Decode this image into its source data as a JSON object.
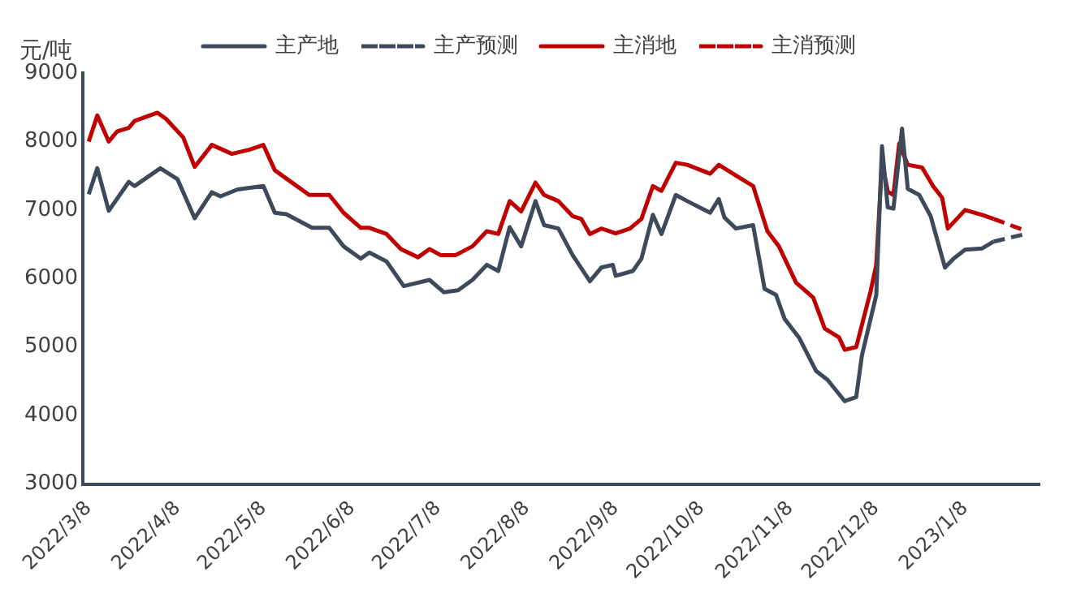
{
  "chart_data": {
    "type": "line",
    "ylabel": "元/吨",
    "legend": "top",
    "marker": "none",
    "grid": false,
    "xlim": [
      "2022-03-06",
      "2023-02-03"
    ],
    "xticks": [
      {
        "value": "2022-03-08",
        "label": "2022/3/8"
      },
      {
        "value": "2022-04-08",
        "label": "2022/4/8"
      },
      {
        "value": "2022-05-08",
        "label": "2022/5/8"
      },
      {
        "value": "2022-06-08",
        "label": "2022/6/8"
      },
      {
        "value": "2022-07-08",
        "label": "2022/7/8"
      },
      {
        "value": "2022-08-08",
        "label": "2022/8/8"
      },
      {
        "value": "2022-09-08",
        "label": "2022/9/8"
      },
      {
        "value": "2022-10-08",
        "label": "2022/10/8"
      },
      {
        "value": "2022-11-08",
        "label": "2022/11/8"
      },
      {
        "value": "2022-12-08",
        "label": "2022/12/8"
      },
      {
        "value": "2023-01-08",
        "label": "2023/1/8"
      }
    ],
    "ylim": [
      3000,
      9000
    ],
    "yticks": [
      3000,
      4000,
      5000,
      6000,
      7000,
      8000,
      9000
    ],
    "series": [
      {
        "name": "主产地",
        "color": "#3d4a5c",
        "line_style": "solid",
        "x": [
          "2022-03-08",
          "2022-03-11",
          "2022-03-15",
          "2022-03-19",
          "2022-03-22",
          "2022-03-24",
          "2022-04-02",
          "2022-04-08",
          "2022-04-14",
          "2022-04-20",
          "2022-04-23",
          "2022-04-29",
          "2022-05-08",
          "2022-05-12",
          "2022-05-16",
          "2022-05-25",
          "2022-05-31",
          "2022-06-05",
          "2022-06-11",
          "2022-06-14",
          "2022-06-20",
          "2022-06-26",
          "2022-06-29",
          "2022-07-05",
          "2022-07-10",
          "2022-07-15",
          "2022-07-20",
          "2022-07-25",
          "2022-07-29",
          "2022-08-02",
          "2022-08-06",
          "2022-08-11",
          "2022-08-14",
          "2022-08-19",
          "2022-08-24",
          "2022-08-30",
          "2022-09-03",
          "2022-09-07",
          "2022-09-08",
          "2022-09-14",
          "2022-09-17",
          "2022-09-21",
          "2022-09-24",
          "2022-09-29",
          "2022-10-03",
          "2022-10-11",
          "2022-10-14",
          "2022-10-16",
          "2022-10-20",
          "2022-10-26",
          "2022-10-30",
          "2022-11-03",
          "2022-11-06",
          "2022-11-11",
          "2022-11-17",
          "2022-11-21",
          "2022-11-27",
          "2022-12-01",
          "2022-12-03",
          "2022-12-08",
          "2022-12-10",
          "2022-12-12",
          "2022-12-14",
          "2022-12-17",
          "2022-12-19",
          "2022-12-23",
          "2022-12-27",
          "2023-01-01",
          "2023-01-04",
          "2023-01-08",
          "2023-01-14",
          "2023-01-18"
        ],
        "values": [
          7230,
          7610,
          6990,
          7230,
          7410,
          7350,
          7610,
          7450,
          6880,
          7260,
          7200,
          7300,
          7350,
          6960,
          6940,
          6740,
          6740,
          6470,
          6290,
          6380,
          6250,
          5890,
          5920,
          5980,
          5800,
          5830,
          5980,
          6200,
          6110,
          6750,
          6470,
          7130,
          6780,
          6730,
          6340,
          5960,
          6160,
          6200,
          6040,
          6110,
          6290,
          6930,
          6650,
          7220,
          7130,
          6960,
          7160,
          6890,
          6730,
          6780,
          5850,
          5760,
          5410,
          5140,
          4650,
          4520,
          4210,
          4270,
          4880,
          5760,
          7930,
          7040,
          7020,
          8190,
          7310,
          7220,
          6910,
          6160,
          6290,
          6420,
          6440,
          6540
        ]
      },
      {
        "name": "主产预测",
        "color": "#3d4a5c",
        "line_style": "dashed",
        "x": [
          "2023-01-18",
          "2023-01-29"
        ],
        "values": [
          6540,
          6650
        ]
      },
      {
        "name": "主消地",
        "color": "#c00000",
        "line_style": "solid",
        "x": [
          "2022-03-08",
          "2022-03-11",
          "2022-03-15",
          "2022-03-18",
          "2022-03-22",
          "2022-03-24",
          "2022-04-01",
          "2022-04-04",
          "2022-04-10",
          "2022-04-14",
          "2022-04-20",
          "2022-04-27",
          "2022-05-03",
          "2022-05-08",
          "2022-05-12",
          "2022-05-18",
          "2022-05-24",
          "2022-05-31",
          "2022-06-05",
          "2022-06-11",
          "2022-06-14",
          "2022-06-20",
          "2022-06-25",
          "2022-07-01",
          "2022-07-05",
          "2022-07-09",
          "2022-07-14",
          "2022-07-20",
          "2022-07-25",
          "2022-07-29",
          "2022-08-02",
          "2022-08-06",
          "2022-08-11",
          "2022-08-14",
          "2022-08-19",
          "2022-08-24",
          "2022-08-27",
          "2022-08-30",
          "2022-09-03",
          "2022-09-08",
          "2022-09-13",
          "2022-09-17",
          "2022-09-21",
          "2022-09-24",
          "2022-09-29",
          "2022-10-03",
          "2022-10-11",
          "2022-10-14",
          "2022-10-19",
          "2022-10-26",
          "2022-10-31",
          "2022-11-04",
          "2022-11-10",
          "2022-11-16",
          "2022-11-20",
          "2022-11-25",
          "2022-11-27",
          "2022-12-01",
          "2022-12-06",
          "2022-12-08",
          "2022-12-10",
          "2022-12-12",
          "2022-12-14",
          "2022-12-16",
          "2022-12-19",
          "2022-12-24",
          "2022-12-28",
          "2022-12-31",
          "2023-01-02",
          "2023-01-08",
          "2023-01-14",
          "2023-01-18"
        ],
        "values": [
          8000,
          8380,
          8000,
          8150,
          8200,
          8300,
          8420,
          8330,
          8060,
          7630,
          7950,
          7820,
          7880,
          7950,
          7580,
          7400,
          7220,
          7220,
          6960,
          6740,
          6740,
          6650,
          6430,
          6310,
          6430,
          6340,
          6340,
          6470,
          6690,
          6650,
          7130,
          6980,
          7400,
          7220,
          7130,
          6910,
          6870,
          6650,
          6730,
          6660,
          6730,
          6870,
          7350,
          7280,
          7690,
          7660,
          7530,
          7660,
          7530,
          7350,
          6690,
          6470,
          5940,
          5720,
          5270,
          5140,
          4960,
          5000,
          5810,
          6200,
          7710,
          7270,
          7220,
          7970,
          7660,
          7620,
          7340,
          7180,
          6730,
          7000,
          6930,
          6870
        ]
      },
      {
        "name": "主消预测",
        "color": "#c00000",
        "line_style": "dashed",
        "x": [
          "2023-01-18",
          "2023-01-29"
        ],
        "values": [
          6870,
          6700
        ]
      }
    ]
  }
}
